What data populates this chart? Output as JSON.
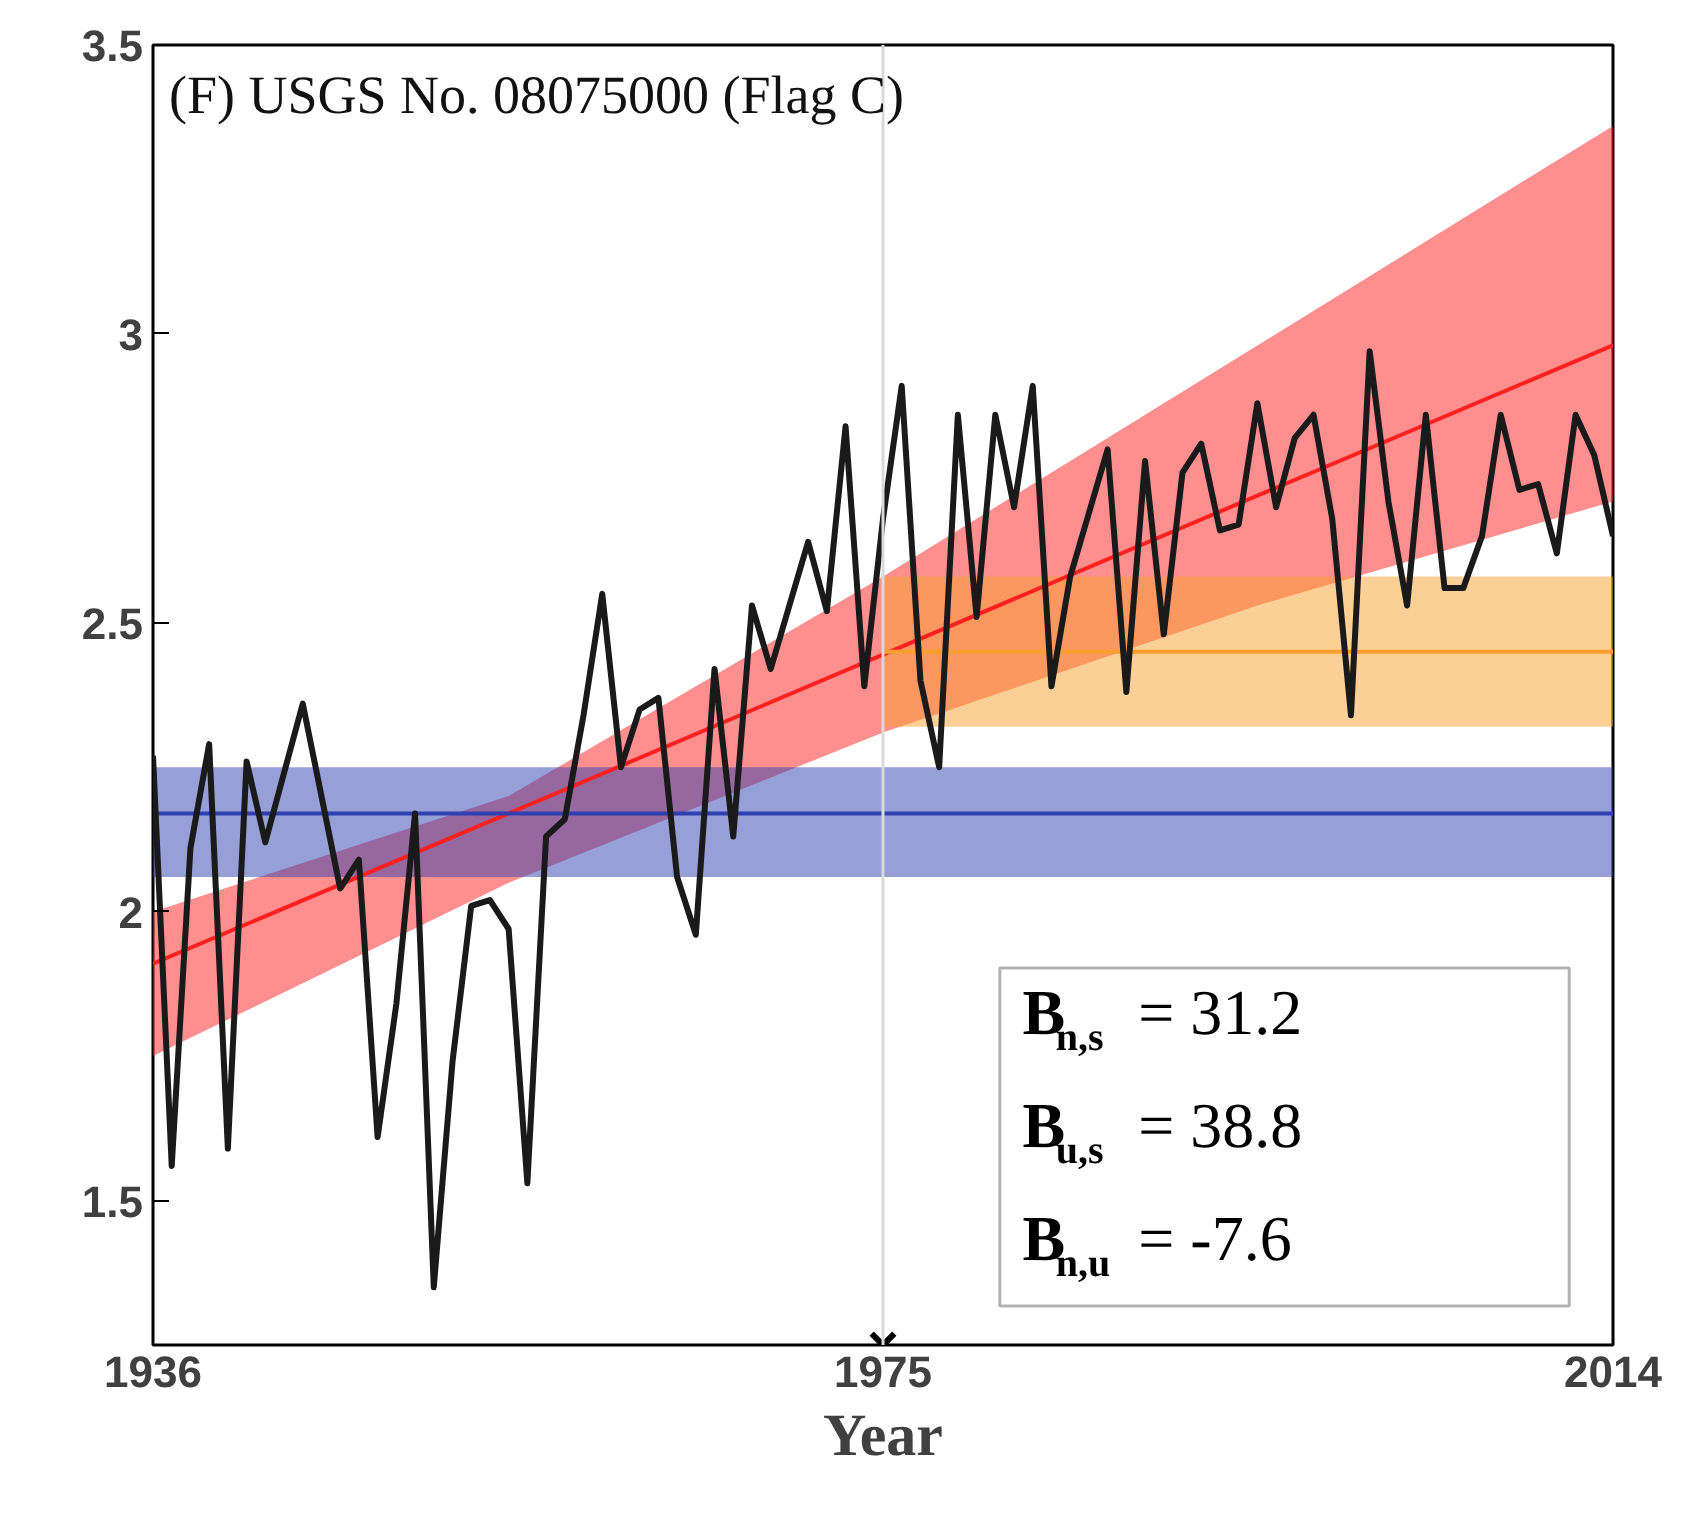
{
  "chart_data": {
    "type": "line",
    "title": "(F) USGS No. 08075000 (Flag C)",
    "xlabel": "Year",
    "xlim": [
      1936,
      2014
    ],
    "xticks": [
      1936,
      1975,
      2014
    ],
    "ylim": [
      1.25,
      3.5
    ],
    "yticks": [
      1.5,
      2,
      2.5,
      3,
      3.5
    ],
    "grid": false,
    "series": [
      {
        "color": "#ff2020",
        "x": [
          1936,
          1955,
          1975,
          1995,
          2014
        ],
        "values": [
          1.91,
          2.17,
          2.445,
          2.72,
          2.98
        ],
        "lower": [
          1.75,
          2.05,
          2.31,
          2.53,
          2.71
        ],
        "upper": [
          2.0,
          2.2,
          2.58,
          2.98,
          3.36
        ]
      },
      {
        "color": "#3040b0",
        "x": [
          1936,
          2014
        ],
        "values": [
          2.17,
          2.17
        ],
        "lower": [
          2.06,
          2.06
        ],
        "upper": [
          2.25,
          2.25
        ]
      },
      {
        "color": "#f9a030",
        "x": [
          1975,
          2014
        ],
        "values": [
          2.45,
          2.45
        ],
        "lower": [
          2.32,
          2.32
        ],
        "upper": [
          2.58,
          2.58
        ]
      },
      {
        "color": "#1a1a1a",
        "x": [
          1936,
          1937,
          1938,
          1939,
          1940,
          1941,
          1942,
          1943,
          1944,
          1945,
          1946,
          1947,
          1948,
          1949,
          1950,
          1951,
          1952,
          1953,
          1954,
          1955,
          1956,
          1957,
          1958,
          1959,
          1960,
          1961,
          1962,
          1963,
          1964,
          1965,
          1966,
          1967,
          1968,
          1969,
          1970,
          1971,
          1972,
          1973,
          1974,
          1975,
          1976,
          1977,
          1978,
          1979,
          1980,
          1981,
          1982,
          1983,
          1984,
          1985,
          1986,
          1987,
          1988,
          1989,
          1990,
          1991,
          1992,
          1993,
          1994,
          1995,
          1996,
          1997,
          1998,
          1999,
          2000,
          2001,
          2002,
          2003,
          2004,
          2005,
          2006,
          2007,
          2008,
          2009,
          2010,
          2011,
          2012,
          2013,
          2014
        ],
        "values": [
          2.27,
          1.56,
          2.11,
          2.29,
          1.59,
          2.26,
          2.12,
          2.24,
          2.36,
          2.2,
          2.04,
          2.09,
          1.61,
          1.84,
          2.17,
          1.35,
          1.74,
          2.01,
          2.02,
          1.97,
          1.53,
          2.13,
          2.16,
          2.34,
          2.55,
          2.25,
          2.35,
          2.37,
          2.06,
          1.96,
          2.42,
          2.13,
          2.53,
          2.42,
          2.53,
          2.64,
          2.52,
          2.84,
          2.39,
          2.68,
          2.91,
          2.4,
          2.25,
          2.86,
          2.51,
          2.86,
          2.7,
          2.91,
          2.39,
          2.58,
          2.69,
          2.8,
          2.38,
          2.78,
          2.48,
          2.76,
          2.81,
          2.66,
          2.67,
          2.88,
          2.7,
          2.82,
          2.86,
          2.68,
          2.34,
          2.97,
          2.71,
          2.53,
          2.86,
          2.56,
          2.56,
          2.65,
          2.86,
          2.73,
          2.74,
          2.62,
          2.86,
          2.79,
          2.65
        ]
      },
      {
        "type": "scatter",
        "marker": "cross",
        "color": "#000000",
        "x": [
          1975
        ],
        "values": [
          1.25
        ]
      }
    ],
    "ref_lines": [
      {
        "axis": "x",
        "value": 1975,
        "color": "#d9d9d9"
      }
    ],
    "annotations": [
      "B$_{n,s}$ = 31.2",
      "B$_{u,s}$ = 38.8",
      "B$_{n,u}$ = -7.6"
    ]
  }
}
